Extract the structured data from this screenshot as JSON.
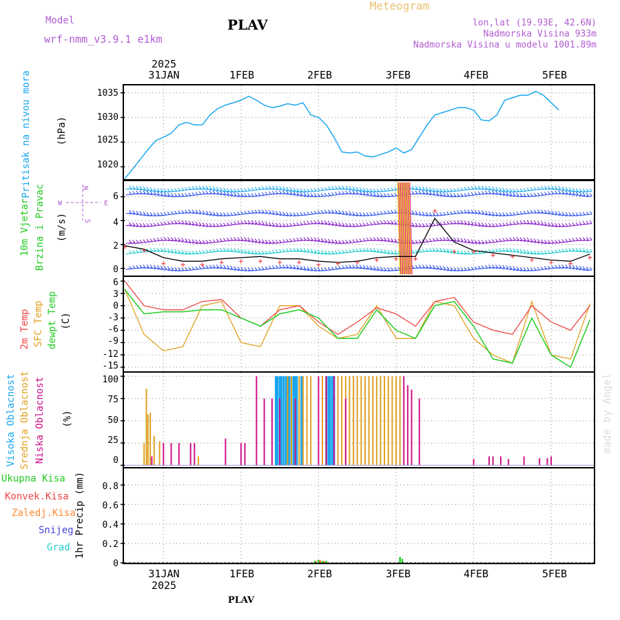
{
  "header": {
    "model_label": "Model",
    "model_name": "wrf-nmm_v3.9.1 e1km",
    "station": "PLAV",
    "title": "Meteogram",
    "coords": "lon,lat (19.93E, 42.6N)",
    "elevation": "Nadmorska Visina 933m",
    "model_elevation": "Nadmorska Visina u modelu 1001.89m",
    "year": "2025",
    "footer_station": "PLAV",
    "credit": "made by Angel"
  },
  "time_axis": {
    "labels": [
      "31JAN",
      "1FEB",
      "2FEB",
      "3FEB",
      "4FEB",
      "5FEB"
    ],
    "year_label": "2025"
  },
  "colors": {
    "pressure": "#1aa6ee",
    "temp2m": "#ee4444",
    "sfc": "#e0a020",
    "dewpt": "#22cc22",
    "wind_speed": "#000000",
    "gust": "#ee4444",
    "high": "#1aa6ee",
    "mid": "#e0a020",
    "low": "#cc1188",
    "total": "#22cc22",
    "conv": "#ee4444",
    "frozen": "#ff8833",
    "snow": "#4444dd",
    "hail": "#22cccc"
  },
  "panels": {
    "pressure": {
      "ylabel": "Pritisak na nivou mora",
      "unit": "(hPa)",
      "ticks": [
        "1020",
        "1025",
        "1030",
        "1035"
      ]
    },
    "wind": {
      "ylabel1": "10m Vjetar",
      "ylabel2": "Brzina i Pravac",
      "unit": "(m/s)",
      "ticks": [
        "0",
        "2",
        "4",
        "6"
      ],
      "compass": {
        "n": "N",
        "s": "S",
        "w": "W",
        "e": "E"
      }
    },
    "temp": {
      "label1": "2m Temp",
      "label2": "SFC Temp",
      "label3": "dewpt Temp",
      "unit": "(C)",
      "ticks": [
        "6",
        "3",
        "0",
        "-3",
        "-6",
        "-9",
        "-12",
        "-15"
      ]
    },
    "cloud": {
      "label1": "Visoka Oblacnost",
      "label2": "Srednja Oblacnost",
      "label3": "Niska Oblacnost",
      "unit": "(%)",
      "ticks": [
        "0",
        "25",
        "50",
        "75",
        "100"
      ]
    },
    "precip": {
      "legend": [
        "Ukupna Kisa",
        "Konvek.Kisa",
        "Zaledj.Kisa",
        "Snijeg",
        "Grad"
      ],
      "ylabel": "1hr Precip (mm)",
      "ticks": [
        "0",
        "0.2",
        "0.4",
        "0.6",
        "0.8"
      ]
    }
  },
  "chart_data": [
    {
      "type": "line",
      "title": "Pritisak na nivou mora",
      "ylabel": "(hPa)",
      "ylim": [
        1017.5,
        1036.5
      ],
      "x_unit": "days since 30 Jan 2025 12:00",
      "x": [
        0,
        0.1,
        0.2,
        0.3,
        0.4,
        0.5,
        0.6,
        0.7,
        0.8,
        0.9,
        1.0,
        1.1,
        1.2,
        1.3,
        1.4,
        1.5,
        1.6,
        1.7,
        1.8,
        1.9,
        2.0,
        2.1,
        2.2,
        2.3,
        2.4,
        2.5,
        2.6,
        2.7,
        2.8,
        2.9,
        3.0,
        3.1,
        3.2,
        3.3,
        3.4,
        3.5,
        3.6,
        3.7,
        3.8,
        3.9,
        4.0,
        4.1,
        4.2,
        4.3,
        4.4,
        4.5,
        4.6,
        4.7,
        4.8,
        4.9,
        5.0,
        5.1,
        5.2,
        5.3,
        5.4,
        5.5,
        5.6,
        5.7,
        5.8,
        5.9,
        6.0
      ],
      "series": [
        {
          "name": "SLP",
          "values": [
            1017.6,
            1019.5,
            1021.5,
            1023.5,
            1025.3,
            1026,
            1026.8,
            1028.5,
            1029,
            1028.5,
            1028.5,
            1030.5,
            1031.8,
            1032.5,
            1033,
            1033.5,
            1034.3,
            1033.5,
            1032.5,
            1032,
            1032.3,
            1032.8,
            1032.5,
            1033,
            1030.5,
            1030,
            1028.5,
            1026,
            1023,
            1022.8,
            1023,
            1022.2,
            1022,
            1022.5,
            1023,
            1023.8,
            1022.8,
            1023.5,
            1026,
            1028.5,
            1030.5,
            1031,
            1031.5,
            1032,
            1032,
            1031.5,
            1029.5,
            1029.3,
            1030.5,
            1033.5,
            1034,
            1034.5,
            1034.5,
            1035.3,
            1034.5,
            1033,
            1031.5,
            null,
            null,
            null,
            null
          ]
        }
      ]
    },
    {
      "type": "line",
      "title": "10m Vjetar Brzina i Pravac",
      "ylabel": "(m/s)",
      "ylim": [
        -0.6,
        7.3
      ],
      "x_unit": "days since 30 Jan 2025 12:00",
      "x": [
        0,
        0.25,
        0.5,
        0.75,
        1.0,
        1.25,
        1.5,
        1.75,
        2.0,
        2.25,
        2.5,
        2.75,
        3.0,
        3.25,
        3.5,
        3.75,
        4.0,
        4.25,
        4.5,
        4.75,
        5.0,
        5.25,
        5.5,
        5.75,
        6.0
      ],
      "series": [
        {
          "name": "wind speed",
          "values": [
            1.9,
            1.6,
            0.9,
            0.6,
            0.6,
            0.8,
            0.9,
            1.0,
            0.8,
            0.8,
            0.6,
            0.5,
            0.6,
            0.9,
            1.0,
            1.0,
            4.2,
            2.2,
            1.5,
            1.3,
            1.1,
            0.9,
            0.7,
            0.6,
            1.2
          ]
        },
        {
          "name": "gust",
          "values": [
            1.8,
            1.5,
            0.4,
            0.3,
            0.3,
            0.5,
            0.6,
            0.6,
            0.5,
            0.5,
            0.3,
            0.4,
            0.5,
            0.7,
            0.8,
            0.8,
            4.8,
            1.4,
            1.4,
            1.1,
            1.0,
            0.7,
            0.5,
            0.4,
            0.9
          ]
        }
      ]
    },
    {
      "type": "line",
      "title": "2m Temp / SFC Temp / dewpt Temp",
      "ylabel": "(C)",
      "ylim": [
        -16,
        7
      ],
      "x_unit": "days since 30 Jan 2025 12:00",
      "x": [
        0,
        0.25,
        0.5,
        0.75,
        1.0,
        1.25,
        1.5,
        1.75,
        2.0,
        2.25,
        2.5,
        2.75,
        3.0,
        3.25,
        3.5,
        3.75,
        4.0,
        4.25,
        4.5,
        4.75,
        5.0,
        5.25,
        5.5,
        5.75,
        6.0
      ],
      "series": [
        {
          "name": "2m Temp",
          "values": [
            6,
            0,
            -1,
            -1,
            1,
            1.5,
            -3,
            -5,
            -1,
            0,
            -4,
            -7,
            -4,
            -0.5,
            -2,
            -5,
            1,
            2,
            -4,
            -6,
            -7,
            0,
            -4,
            -6,
            0
          ]
        },
        {
          "name": "SFC Temp",
          "values": [
            4,
            -7,
            -11,
            -10,
            0,
            1,
            -9,
            -10,
            0,
            0,
            -5,
            -8,
            -7,
            0,
            -8,
            -8,
            1,
            0,
            -8,
            -12,
            -14,
            1,
            -12,
            -13,
            0.5
          ]
        },
        {
          "name": "dewpt Temp",
          "values": [
            4,
            -2,
            -1.5,
            -1.5,
            -1,
            -1,
            -3,
            -5,
            -2,
            -1,
            -3,
            -8,
            -8,
            -1,
            -6,
            -8,
            0,
            1,
            -5,
            -13,
            -14,
            -3,
            -12,
            -15,
            -3.5
          ]
        }
      ]
    },
    {
      "type": "bar",
      "title": "Visoka / Srednja / Niska Oblacnost",
      "ylabel": "(%)",
      "ylim": [
        0,
        100
      ],
      "x_unit": "days since 30 Jan 2025 12:00",
      "series": [
        {
          "name": "Visoka Oblacnost",
          "x": [
            1.95,
            1.97,
            2.0,
            2.02,
            2.05,
            2.08,
            2.1,
            2.12,
            2.15,
            2.18,
            2.2,
            2.22,
            2.28,
            2.6,
            2.63,
            2.65,
            2.68,
            2.7
          ],
          "values": [
            100,
            100,
            100,
            100,
            100,
            100,
            100,
            100,
            100,
            100,
            100,
            100,
            100,
            100,
            100,
            100,
            100,
            100
          ]
        },
        {
          "name": "Srednja Oblacnost",
          "x": [
            0.25,
            0.28,
            0.3,
            0.33,
            0.38,
            0.45,
            0.95,
            2.1,
            2.15,
            2.25,
            2.3,
            2.35,
            2.4,
            2.55,
            2.6,
            2.75,
            2.8,
            2.85,
            2.9,
            2.95,
            3.0,
            3.05,
            3.1,
            3.15,
            3.2,
            3.25,
            3.3,
            3.35,
            3.4,
            3.45,
            3.5,
            3.55
          ],
          "values": [
            25,
            86,
            57,
            59,
            33,
            27,
            10,
            100,
            100,
            100,
            100,
            100,
            100,
            100,
            100,
            100,
            100,
            100,
            100,
            100,
            100,
            100,
            100,
            100,
            100,
            100,
            100,
            100,
            100,
            100,
            100,
            100
          ]
        },
        {
          "name": "Niska Oblacnost",
          "x": [
            0.35,
            0.5,
            0.6,
            0.7,
            0.85,
            0.9,
            1.3,
            1.5,
            1.55,
            1.7,
            1.8,
            1.9,
            2.0,
            2.2,
            2.5,
            2.6,
            2.7,
            2.85,
            3.6,
            3.65,
            3.7,
            3.8,
            4.5,
            4.7,
            4.75,
            4.85,
            4.95,
            5.15,
            5.35,
            5.45,
            5.5
          ],
          "values": [
            10,
            25,
            25,
            25,
            25,
            25,
            30,
            25,
            25,
            100,
            75,
            75,
            75,
            75,
            100,
            100,
            100,
            75,
            100,
            90,
            85,
            75,
            7,
            10,
            10,
            10,
            7,
            10,
            8,
            8,
            10
          ]
        }
      ]
    },
    {
      "type": "bar",
      "title": "1hr Precip",
      "ylabel": "1hr Precip (mm)",
      "ylim": [
        0,
        1.0
      ],
      "x_unit": "days since 30 Jan 2025 12:00",
      "series": [
        {
          "name": "Ukupna Kisa",
          "x": [
            2.45,
            2.5,
            2.55,
            2.6,
            3.55,
            3.58
          ],
          "values": [
            0.02,
            0.03,
            0.02,
            0.02,
            0.06,
            0.04
          ]
        },
        {
          "name": "Zaledj.Kisa",
          "x": [
            2.47,
            2.52,
            2.57
          ],
          "values": [
            0.02,
            0.03,
            0.02
          ]
        }
      ]
    }
  ]
}
